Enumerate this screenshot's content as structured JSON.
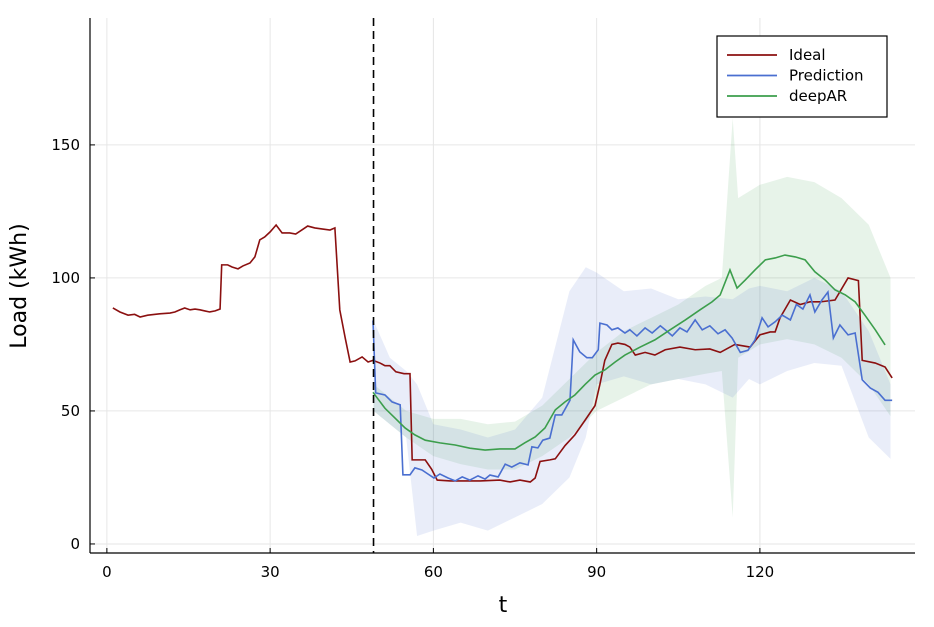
{
  "chart_data": {
    "type": "line",
    "xlabel": "t",
    "ylabel": "Load (kWh)",
    "xlim": [
      -3.1,
      148.5
    ],
    "ylim": [
      -3.4,
      197.7
    ],
    "xticks": [
      0,
      30,
      60,
      90,
      120
    ],
    "yticks": [
      0,
      50,
      100,
      150
    ],
    "grid": true,
    "legend": "top-right",
    "vline": 49,
    "series": [
      {
        "name": "Ideal",
        "color": "#8b1010",
        "x": [
          1.1,
          2.4,
          3.9,
          5.1,
          6.1,
          7.5,
          9.7,
          11.6,
          12.5,
          13.4,
          14.3,
          15.3,
          16.2,
          17.1,
          18,
          18.9,
          19.9,
          20.8,
          21.1,
          22.2,
          23,
          24.1,
          25,
          26.3,
          27.2,
          28.1,
          29,
          30,
          31.1,
          32.2,
          33.6,
          34.7,
          35.8,
          36.9,
          38.2,
          39.5,
          41,
          41.9,
          42.8,
          43.8,
          44.7,
          45.6,
          46.9,
          48,
          48.9,
          50.2,
          51.1,
          52,
          53.1,
          54.6,
          55.7,
          56.1,
          58.5,
          59.7,
          60.7,
          63.1,
          68.6,
          72.2,
          74.1,
          75.9,
          77.8,
          78.7,
          79.6,
          81.4,
          82.4,
          84.2,
          86,
          87.9,
          89.7,
          90.6,
          91.5,
          92.8,
          93.9,
          95.2,
          96.1,
          97.1,
          98.9,
          100.7,
          102.6,
          105.3,
          108.1,
          110.8,
          112.7,
          115.4,
          118.2,
          120,
          121.9,
          122.8,
          123.7,
          125.6,
          127.4,
          129.2,
          131.1,
          133.8,
          136.2,
          138.1,
          138.8,
          141.2,
          143,
          144.3
        ],
        "values": [
          88.7,
          87.2,
          86,
          86.3,
          85.3,
          86,
          86.5,
          86.8,
          87.2,
          88,
          88.7,
          88,
          88.3,
          88,
          87.6,
          87.2,
          87.6,
          88.3,
          104.9,
          104.9,
          104.1,
          103.4,
          104.5,
          105.6,
          107.9,
          114.3,
          115.4,
          117.3,
          119.9,
          116.9,
          116.9,
          116.5,
          118,
          119.5,
          118.8,
          118.4,
          118,
          118.8,
          88,
          77.4,
          68.4,
          68.8,
          70.3,
          68.4,
          69,
          68,
          67,
          67,
          64.7,
          64,
          64,
          31.6,
          31.6,
          28,
          24,
          23.7,
          23.7,
          24,
          23.3,
          24,
          23.3,
          24.8,
          31,
          31.6,
          32,
          37,
          41,
          46.6,
          52,
          60,
          69,
          75,
          75.5,
          75,
          74,
          71,
          72,
          71,
          73,
          74,
          73,
          73.3,
          72,
          75,
          74,
          78.6,
          79.7,
          79.7,
          85,
          91.7,
          90,
          91,
          91,
          91.7,
          100,
          99,
          69,
          68,
          66.5,
          62.4
        ]
      },
      {
        "name": "Prediction",
        "color": "#4a6fd0",
        "x": [
          48.9,
          49.4,
          51.1,
          52.4,
          53.9,
          54.4,
          55.7,
          56.6,
          57.9,
          59,
          60.1,
          61.2,
          62.7,
          64,
          65.3,
          66.7,
          68.2,
          69.5,
          70.4,
          71.9,
          73.2,
          74.4,
          75.9,
          77.4,
          78.1,
          79.2,
          80.1,
          81.4,
          82.4,
          83.6,
          85.1,
          85.7,
          86.9,
          88.2,
          89.2,
          90.3,
          90.6,
          91.9,
          92.8,
          93.9,
          95.2,
          96.1,
          97.4,
          98.9,
          100.2,
          101.7,
          102.6,
          103.9,
          105.3,
          106.6,
          108.1,
          109.4,
          110.8,
          112.3,
          113.6,
          114.9,
          116.4,
          117.8,
          119.1,
          120.4,
          121.5,
          122.8,
          124.1,
          125.6,
          126.7,
          127.9,
          129.2,
          130.1,
          131.4,
          132.5,
          133.5,
          134.7,
          136.2,
          137.5,
          138.8,
          140.3,
          141.7,
          143,
          144.3
        ],
        "values": [
          84,
          56.8,
          56,
          53.4,
          52.3,
          26,
          26,
          28.6,
          27.8,
          26.3,
          24.8,
          26.3,
          24.8,
          23.7,
          25.2,
          24,
          25.6,
          24.4,
          25.9,
          25.2,
          30,
          28.9,
          30.5,
          29.7,
          36.5,
          36.1,
          39,
          39.8,
          48.5,
          48.5,
          54,
          76.7,
          72.2,
          70,
          70,
          73,
          83,
          82.3,
          80.5,
          81.2,
          79.3,
          80.5,
          78.2,
          81.2,
          79.3,
          82,
          80.5,
          78.2,
          81.2,
          79.7,
          84.2,
          80.5,
          82,
          79,
          80.5,
          77.4,
          72,
          72.8,
          76.7,
          85,
          81.6,
          83.5,
          86,
          84.2,
          90,
          88.3,
          93.6,
          87.2,
          91.7,
          94.7,
          77.4,
          82.3,
          78.6,
          79.3,
          61.7,
          58.6,
          57,
          54,
          54
        ],
        "band_x": [
          49,
          52,
          55,
          57,
          60,
          65,
          70,
          75,
          80,
          85,
          88,
          90,
          95,
          100,
          105,
          110,
          115,
          118,
          120,
          125,
          130,
          135,
          140,
          144
        ],
        "band_upper": [
          84,
          70,
          65,
          60,
          45,
          43,
          40,
          43,
          55,
          95,
          104,
          102,
          95,
          96,
          92,
          93,
          92,
          96,
          97,
          95,
          100,
          95,
          80,
          60
        ],
        "band_lower": [
          50,
          45,
          40,
          3,
          5,
          8,
          5,
          10,
          15,
          25,
          40,
          60,
          63,
          60,
          62,
          60,
          55,
          62,
          60,
          65,
          68,
          67,
          40,
          32
        ]
      },
      {
        "name": "deepAR",
        "color": "#3c9e4c",
        "x": [
          48.9,
          51.1,
          52.9,
          54.8,
          56.6,
          58.5,
          61.2,
          64,
          66.7,
          69.5,
          72.2,
          75,
          76.8,
          78.7,
          80.5,
          82.4,
          84.2,
          86,
          87.9,
          89.7,
          91.5,
          93.4,
          95.2,
          98,
          100.7,
          103.5,
          106.3,
          109,
          111.2,
          112.7,
          114.5,
          115.8,
          117.3,
          119.1,
          121,
          122.8,
          124.6,
          126.5,
          128.3,
          130.1,
          132,
          133.8,
          135.7,
          137.5,
          139.3,
          141.2,
          143
        ],
        "values": [
          57,
          51,
          47.4,
          43.6,
          41,
          39,
          38,
          37.2,
          36,
          35.3,
          35.7,
          35.7,
          38,
          40.2,
          43.6,
          50.4,
          53.4,
          56,
          60,
          63.5,
          65.4,
          68.4,
          71,
          74,
          76.7,
          80.5,
          84.2,
          88,
          91,
          93.6,
          103,
          96.2,
          99.2,
          103,
          106.8,
          107.5,
          108.6,
          107.9,
          106.8,
          102.3,
          99.2,
          95.5,
          93.6,
          91,
          86,
          80.5,
          74.8
        ],
        "band_x": [
          49,
          55,
          60,
          65,
          70,
          75,
          80,
          85,
          90,
          95,
          100,
          105,
          110,
          113,
          115,
          116,
          120,
          125,
          130,
          135,
          140,
          144
        ],
        "band_upper": [
          60,
          50,
          47,
          47,
          45,
          46,
          52,
          62,
          72,
          80,
          85,
          90,
          97,
          100,
          160,
          130,
          135,
          138,
          136,
          130,
          120,
          100
        ],
        "band_lower": [
          50,
          40,
          33,
          30,
          28,
          28,
          33,
          40,
          50,
          55,
          60,
          62,
          64,
          65,
          10,
          70,
          75,
          77,
          75,
          70,
          60,
          48
        ]
      }
    ]
  }
}
